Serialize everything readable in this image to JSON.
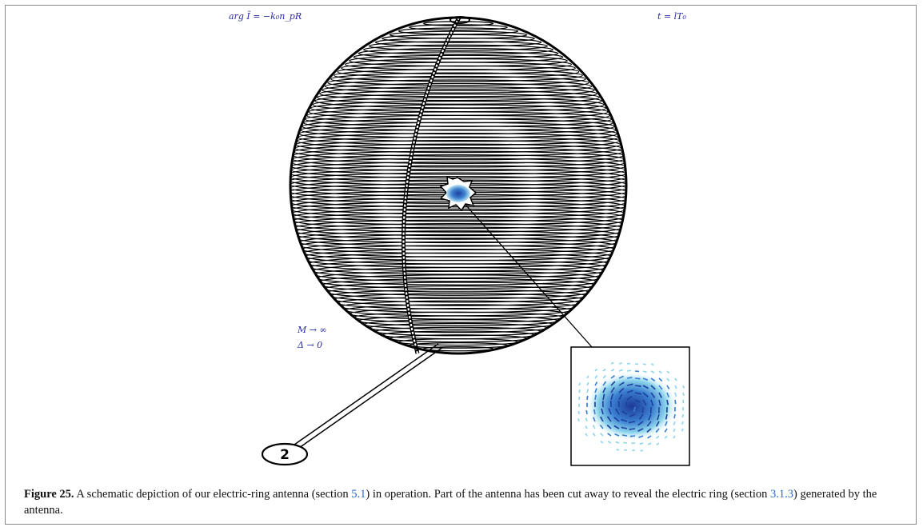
{
  "figure": {
    "annotations": {
      "phase": "arg Ĩ = −k₀n_pR",
      "time": "t = lT₀",
      "limit_m": "M → ∞",
      "limit_delta": "Δ → 0"
    },
    "port_label": "2",
    "caption": {
      "label": "Figure 25.",
      "text_1": " A schematic depiction of our electric-ring antenna (section ",
      "ref_1": "5.1",
      "text_2": ") in operation. Part of the antenna has been cut away to reveal the electric ring (section ",
      "ref_2": "3.1.3",
      "text_3": ") generated by the antenna."
    },
    "colors": {
      "math_text": "#2b2ba8",
      "reference_link": "#2b6cc4",
      "field_dark": "#1f3f9e",
      "field_light": "#6fd0e8"
    }
  }
}
